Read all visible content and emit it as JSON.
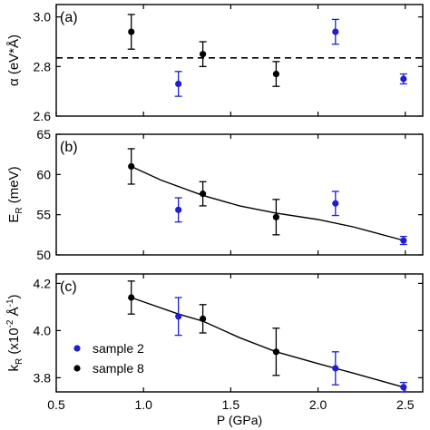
{
  "colors": {
    "sample2": "#1f1fd1",
    "sample8": "#000000",
    "axis": "#000000"
  },
  "chart_data": [
    {
      "type": "scatter",
      "panel_label": "(a)",
      "ylabel": "α (eV*Å)",
      "xlim": [
        0.5,
        2.6
      ],
      "ylim": [
        2.6,
        3.05
      ],
      "yticks": [
        2.6,
        2.8,
        3.0
      ],
      "ytick_labels": [
        "2.6",
        "2.8",
        "3.0"
      ],
      "reference_line": {
        "y": 2.835,
        "style": "dashed"
      },
      "series": [
        {
          "key": "sample2",
          "points": [
            {
              "x": 1.2,
              "y": 2.73,
              "err": 0.05
            },
            {
              "x": 2.1,
              "y": 2.94,
              "err": 0.05
            },
            {
              "x": 2.49,
              "y": 2.75,
              "err": 0.02
            }
          ]
        },
        {
          "key": "sample8",
          "points": [
            {
              "x": 0.93,
              "y": 2.94,
              "err": 0.07
            },
            {
              "x": 1.34,
              "y": 2.85,
              "err": 0.05
            },
            {
              "x": 1.76,
              "y": 2.77,
              "err": 0.05
            }
          ]
        }
      ]
    },
    {
      "type": "scatter",
      "panel_label": "(b)",
      "ylabel": "E",
      "ylabel_sub": "R",
      "ylabel_unit": " (meV)",
      "xlim": [
        0.5,
        2.6
      ],
      "ylim": [
        50,
        65
      ],
      "yticks": [
        50,
        55,
        60,
        65
      ],
      "ytick_labels": [
        "50",
        "55",
        "60",
        "65"
      ],
      "fit_line": [
        {
          "x": 0.93,
          "y": 61.0
        },
        {
          "x": 1.1,
          "y": 59.3
        },
        {
          "x": 1.34,
          "y": 57.4
        },
        {
          "x": 1.55,
          "y": 56.1
        },
        {
          "x": 1.76,
          "y": 55.2
        },
        {
          "x": 2.0,
          "y": 54.4
        },
        {
          "x": 2.2,
          "y": 53.5
        },
        {
          "x": 2.49,
          "y": 51.8
        }
      ],
      "series": [
        {
          "key": "sample2",
          "points": [
            {
              "x": 1.2,
              "y": 55.6,
              "err": 1.5
            },
            {
              "x": 2.1,
              "y": 56.4,
              "err": 1.5
            },
            {
              "x": 2.49,
              "y": 51.8,
              "err": 0.5
            }
          ]
        },
        {
          "key": "sample8",
          "points": [
            {
              "x": 0.93,
              "y": 61.0,
              "err": 2.2
            },
            {
              "x": 1.34,
              "y": 57.6,
              "err": 1.5
            },
            {
              "x": 1.76,
              "y": 54.7,
              "err": 2.2
            }
          ]
        }
      ]
    },
    {
      "type": "scatter",
      "panel_label": "(c)",
      "ylabel": "k",
      "ylabel_sub": "R",
      "ylabel_unit": " (x10",
      "ylabel_unit_sup": "-2",
      "ylabel_unit_tail": " Å",
      "ylabel_unit_sup2": "-1",
      "ylabel_close": ")",
      "xlabel": "P (GPa)",
      "xlim": [
        0.5,
        2.6
      ],
      "ylim": [
        3.74,
        4.24
      ],
      "yticks": [
        3.8,
        4.0,
        4.2
      ],
      "ytick_labels": [
        "3.8",
        "4.0",
        "4.2"
      ],
      "xticks": [
        0.5,
        1.0,
        1.5,
        2.0,
        2.5
      ],
      "xtick_labels": [
        "0.5",
        "1.0",
        "1.5",
        "2.0",
        "2.5"
      ],
      "fit_line": [
        {
          "x": 0.93,
          "y": 4.14
        },
        {
          "x": 1.2,
          "y": 4.07
        },
        {
          "x": 1.34,
          "y": 4.04
        },
        {
          "x": 1.55,
          "y": 3.97
        },
        {
          "x": 1.76,
          "y": 3.91
        },
        {
          "x": 2.0,
          "y": 3.86
        },
        {
          "x": 2.2,
          "y": 3.82
        },
        {
          "x": 2.49,
          "y": 3.76
        }
      ],
      "series": [
        {
          "key": "sample2",
          "points": [
            {
              "x": 1.2,
              "y": 4.06,
              "err": 0.08
            },
            {
              "x": 2.1,
              "y": 3.84,
              "err": 0.07
            },
            {
              "x": 2.49,
              "y": 3.76,
              "err": 0.02
            }
          ]
        },
        {
          "key": "sample8",
          "points": [
            {
              "x": 0.93,
              "y": 4.14,
              "err": 0.07
            },
            {
              "x": 1.34,
              "y": 4.05,
              "err": 0.06
            },
            {
              "x": 1.76,
              "y": 3.91,
              "err": 0.1
            }
          ]
        }
      ],
      "legend": {
        "position": "bottom-left",
        "entries": [
          {
            "key": "sample2",
            "label": "sample 2"
          },
          {
            "key": "sample8",
            "label": "sample 8"
          }
        ]
      }
    }
  ]
}
